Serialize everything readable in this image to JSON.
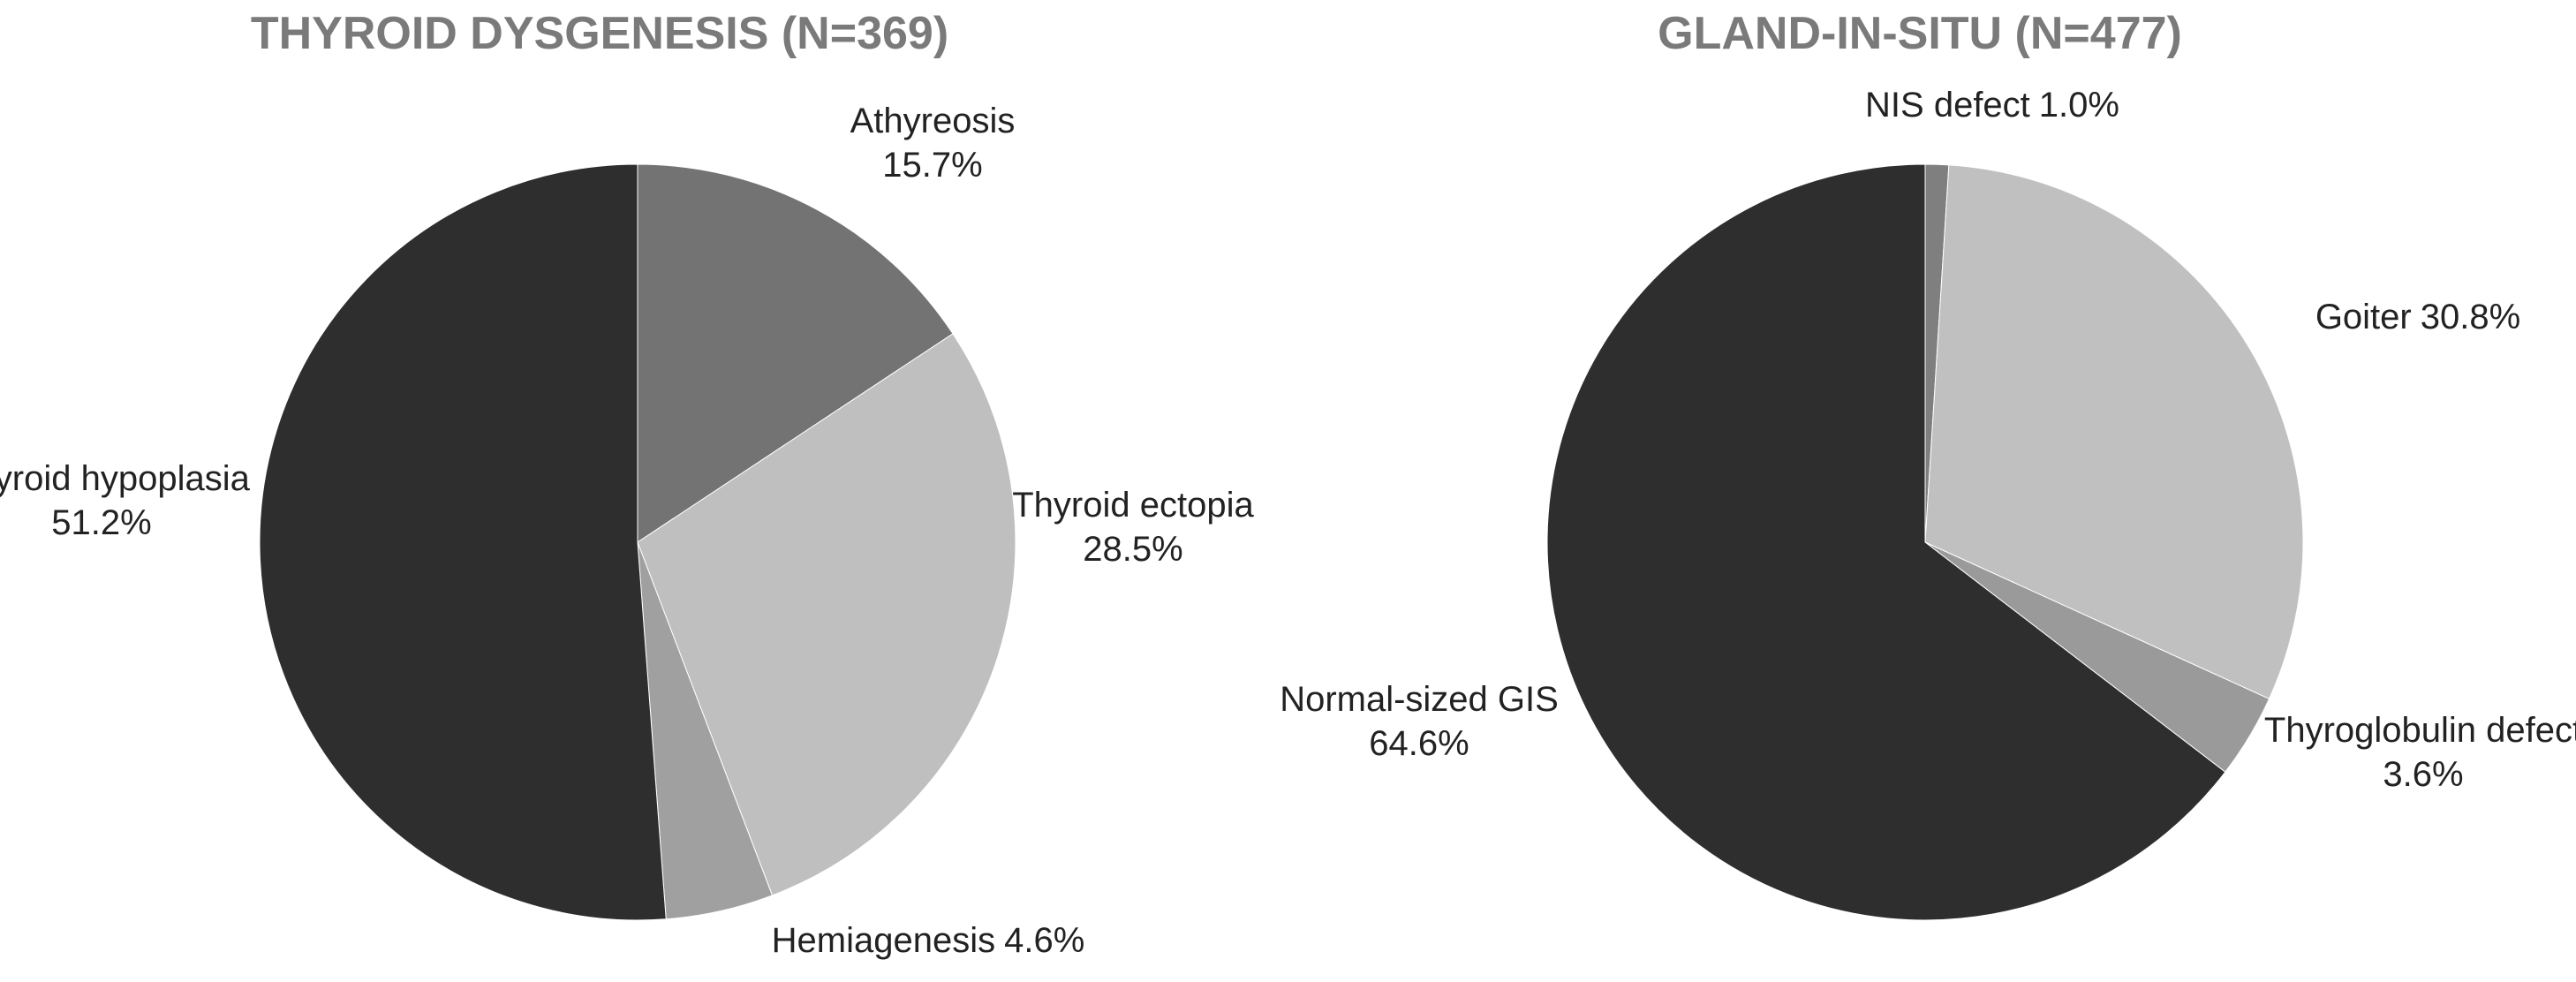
{
  "chart_data": [
    {
      "type": "pie",
      "title": "THYROID DYSGENESIS (N=369)",
      "categories": [
        "Athyreosis",
        "Thyroid ectopia",
        "Hemiagenesis",
        "Thyroid hypoplasia"
      ],
      "values": [
        15.7,
        28.5,
        4.6,
        51.2
      ],
      "value_labels": [
        "15.7%",
        "28.5%",
        "4.6%",
        "51.2%"
      ],
      "colors": [
        "#737373",
        "#bfbfbf",
        "#a0a0a0",
        "#2e2e2e"
      ]
    },
    {
      "type": "pie",
      "title": "GLAND-IN-SITU (N=477)",
      "categories": [
        "NIS defect",
        "Goiter",
        "Thyroglobulin defect",
        "Normal-sized GIS"
      ],
      "values": [
        1.0,
        30.8,
        3.6,
        64.6
      ],
      "value_labels": [
        "1.0%",
        "30.8%",
        "3.6%",
        "64.6%"
      ],
      "colors": [
        "#7f7f7f",
        "#c0c0c0",
        "#9a9a9a",
        "#2e2e2e"
      ]
    }
  ]
}
